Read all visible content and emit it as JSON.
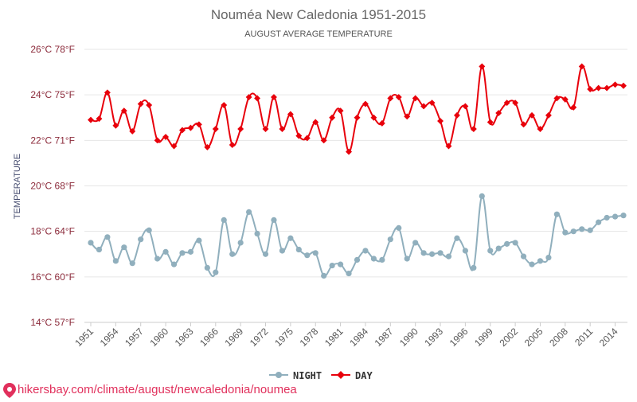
{
  "chart_data": {
    "type": "line",
    "title": "Nouméa New Caledonia 1951-2015",
    "subtitle": "AUGUST AVERAGE TEMPERATURE",
    "ylabel": "TEMPERATURE",
    "ylim": [
      14,
      26
    ],
    "y_ticks": [
      {
        "value": 14,
        "label": "14°C 57°F"
      },
      {
        "value": 16,
        "label": "16°C 60°F"
      },
      {
        "value": 18,
        "label": "18°C 64°F"
      },
      {
        "value": 20,
        "label": "20°C 68°F"
      },
      {
        "value": 22,
        "label": "22°C 71°F"
      },
      {
        "value": 24,
        "label": "24°C 75°F"
      },
      {
        "value": 26,
        "label": "26°C 78°F"
      }
    ],
    "x_tick_labels": [
      "1951",
      "1954",
      "1957",
      "1960",
      "1963",
      "1966",
      "1969",
      "1972",
      "1975",
      "1978",
      "1981",
      "1984",
      "1987",
      "1990",
      "1993",
      "1996",
      "1999",
      "2002",
      "2005",
      "2008",
      "2011",
      "2014"
    ],
    "x_start": 1951,
    "x_end": 2015,
    "series": [
      {
        "name": "NIGHT",
        "color": "#90afbd",
        "values": [
          17.5,
          17.2,
          17.75,
          16.7,
          17.3,
          16.6,
          17.65,
          18.05,
          16.8,
          17.1,
          16.55,
          17.05,
          17.1,
          17.6,
          16.4,
          16.2,
          18.5,
          17.0,
          17.5,
          18.85,
          17.9,
          17.0,
          18.5,
          17.15,
          17.7,
          17.2,
          16.95,
          17.05,
          16.05,
          16.5,
          16.55,
          16.15,
          16.75,
          17.15,
          16.8,
          16.75,
          17.65,
          18.15,
          16.8,
          17.5,
          17.05,
          17.0,
          17.05,
          16.9,
          17.7,
          17.15,
          16.4,
          19.55,
          17.15,
          17.25,
          17.45,
          17.5,
          16.9,
          16.55,
          16.7,
          16.85,
          18.75,
          17.95,
          18.0,
          18.1,
          18.05,
          18.4,
          18.6,
          18.65,
          18.7
        ]
      },
      {
        "name": "DAY",
        "color": "#e8000b",
        "values": [
          22.9,
          22.95,
          24.1,
          22.65,
          23.3,
          22.4,
          23.6,
          23.55,
          22.0,
          22.15,
          21.75,
          22.45,
          22.55,
          22.7,
          21.7,
          22.5,
          23.55,
          21.8,
          22.5,
          23.9,
          23.85,
          22.5,
          23.9,
          22.5,
          23.15,
          22.2,
          22.1,
          22.8,
          22.0,
          23.0,
          23.3,
          21.5,
          23.0,
          23.6,
          23.0,
          22.75,
          23.85,
          23.9,
          23.05,
          23.85,
          23.5,
          23.65,
          22.85,
          21.75,
          23.1,
          23.5,
          22.5,
          25.25,
          22.8,
          23.2,
          23.65,
          23.65,
          22.7,
          23.1,
          22.5,
          23.1,
          23.85,
          23.8,
          23.45,
          25.25,
          24.25,
          24.3,
          24.3,
          24.45,
          24.4
        ]
      }
    ],
    "legend": {
      "position": "bottom-center"
    }
  },
  "footer": {
    "text": "hikersbay.com/climate/august/newcaledonia/noumea"
  }
}
